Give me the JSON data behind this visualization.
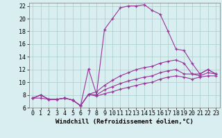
{
  "background_color": "#d8eef0",
  "line_color": "#993399",
  "grid_color": "#aacccc",
  "xlabel": "Windchill (Refroidissement éolien,°C)",
  "xlabel_fontsize": 6.5,
  "xlim": [
    -0.5,
    23.5
  ],
  "ylim": [
    6,
    22.5
  ],
  "xticks": [
    0,
    1,
    2,
    3,
    4,
    5,
    6,
    7,
    8,
    9,
    10,
    11,
    12,
    13,
    14,
    15,
    16,
    17,
    18,
    19,
    20,
    21,
    22,
    23
  ],
  "yticks": [
    6,
    8,
    10,
    12,
    14,
    16,
    18,
    20,
    22
  ],
  "tick_fontsize": 6.0,
  "line1_x": [
    0,
    1,
    2,
    3,
    4,
    5,
    6,
    7,
    8,
    9,
    10,
    11,
    12,
    13,
    14,
    15,
    16,
    17,
    18,
    19,
    20,
    21,
    22,
    23
  ],
  "line1_y": [
    7.5,
    8.0,
    7.3,
    7.3,
    7.5,
    7.2,
    6.3,
    12.1,
    8.1,
    18.3,
    20.0,
    21.7,
    22.0,
    22.0,
    22.2,
    21.3,
    20.7,
    18.0,
    15.2,
    15.0,
    13.0,
    11.3,
    12.0,
    11.3
  ],
  "line2_x": [
    0,
    1,
    2,
    3,
    4,
    5,
    6,
    7,
    8,
    9,
    10,
    11,
    12,
    13,
    14,
    15,
    16,
    17,
    18,
    19,
    20,
    21,
    22,
    23
  ],
  "line2_y": [
    7.5,
    8.0,
    7.3,
    7.3,
    7.5,
    7.2,
    6.3,
    8.1,
    8.5,
    9.5,
    10.3,
    11.0,
    11.5,
    12.0,
    12.3,
    12.5,
    13.0,
    13.3,
    13.5,
    13.0,
    11.3,
    11.3,
    12.0,
    11.3
  ],
  "line3_x": [
    0,
    1,
    2,
    3,
    4,
    5,
    6,
    7,
    8,
    9,
    10,
    11,
    12,
    13,
    14,
    15,
    16,
    17,
    18,
    19,
    20,
    21,
    22,
    23
  ],
  "line3_y": [
    7.5,
    8.0,
    7.3,
    7.3,
    7.5,
    7.2,
    6.3,
    8.1,
    8.0,
    8.8,
    9.3,
    9.8,
    10.2,
    10.5,
    10.8,
    11.0,
    11.5,
    11.8,
    12.0,
    11.3,
    11.3,
    11.0,
    11.5,
    11.3
  ],
  "line4_x": [
    0,
    1,
    2,
    3,
    4,
    5,
    6,
    7,
    8,
    9,
    10,
    11,
    12,
    13,
    14,
    15,
    16,
    17,
    18,
    19,
    20,
    21,
    22,
    23
  ],
  "line4_y": [
    7.5,
    7.5,
    7.3,
    7.3,
    7.5,
    7.2,
    6.3,
    8.1,
    7.8,
    8.2,
    8.5,
    8.9,
    9.2,
    9.5,
    9.8,
    10.0,
    10.5,
    10.8,
    11.0,
    10.8,
    10.5,
    10.8,
    11.0,
    11.0
  ]
}
